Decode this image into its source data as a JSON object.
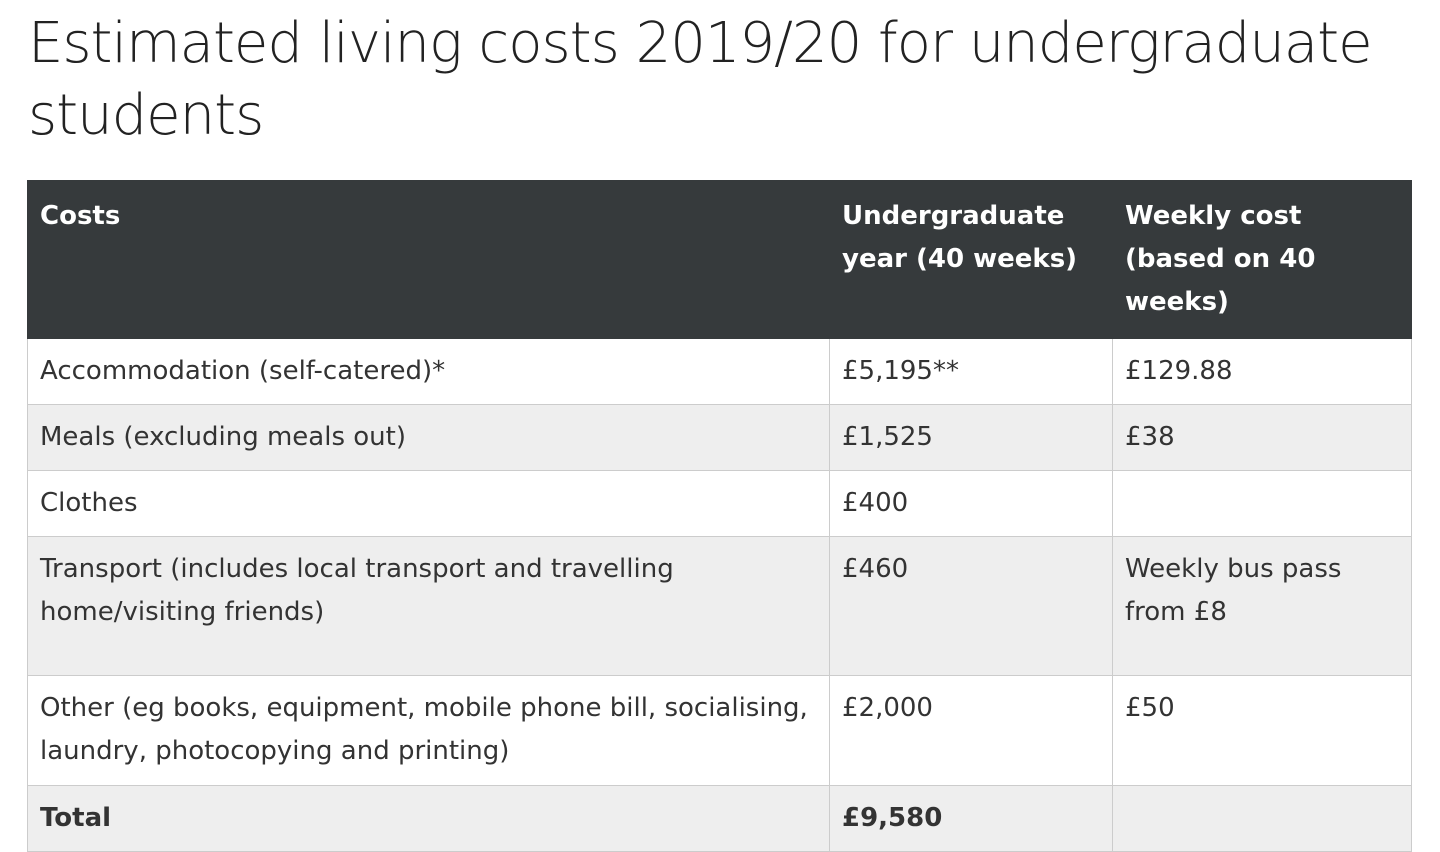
{
  "page": {
    "title": "Estimated living costs 2019/20 for undergraduate students"
  },
  "table": {
    "headers": [
      "Costs",
      "Undergraduate year (40 weeks)",
      "Weekly cost (based on 40 weeks)"
    ],
    "rows": [
      {
        "cost": "Accommodation (self-catered)*",
        "year": "£5,195**",
        "weekly": "£129.88"
      },
      {
        "cost": "Meals (excluding meals out)",
        "year": "£1,525",
        "weekly": "£38"
      },
      {
        "cost": "Clothes",
        "year": "£400",
        "weekly": ""
      },
      {
        "cost": "Transport (includes local transport and travelling home/visiting friends)",
        "year": "£460",
        "weekly": "Weekly bus pass from £8"
      },
      {
        "cost": "Other (eg books, equipment, mobile phone bill, socialising, laundry, photocopying and printing)",
        "year": "£2,000",
        "weekly": "£50"
      }
    ],
    "total": {
      "cost": "Total",
      "year": "£9,580",
      "weekly": ""
    }
  }
}
